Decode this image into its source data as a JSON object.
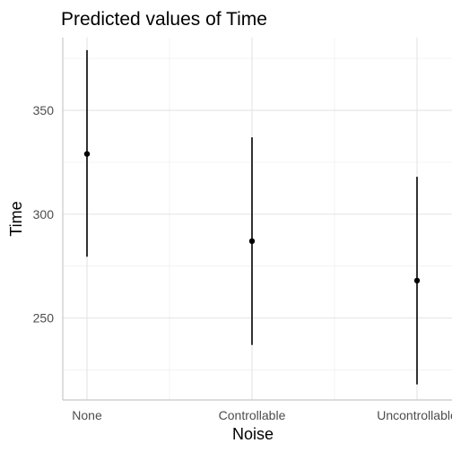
{
  "chart_data": {
    "type": "scatter",
    "title": "Predicted values of Time",
    "xlabel": "Noise",
    "ylabel": "Time",
    "categories": [
      "None",
      "Controllable",
      "Uncontrollable"
    ],
    "points": [
      {
        "category": "None",
        "value": 329,
        "low": 279.5,
        "high": 379
      },
      {
        "category": "Controllable",
        "value": 287,
        "low": 237,
        "high": 337
      },
      {
        "category": "Uncontrollable",
        "value": 268,
        "low": 218,
        "high": 318
      }
    ],
    "ylim": [
      210.5,
      385
    ],
    "yticks": [
      250,
      300,
      350
    ],
    "grid": true,
    "legend": "none"
  }
}
